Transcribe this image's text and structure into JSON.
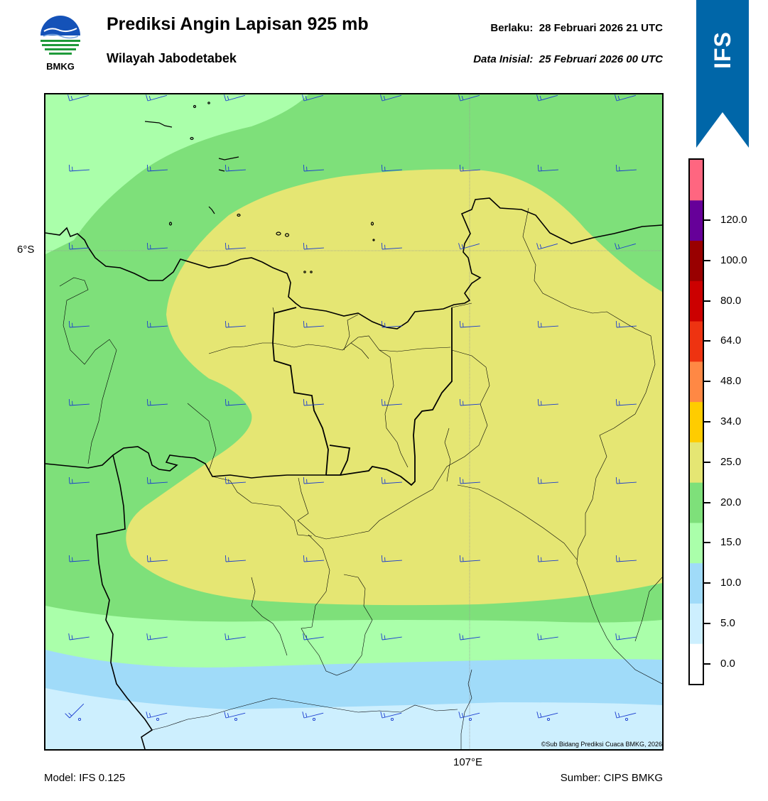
{
  "header": {
    "title": "Prediksi Angin Lapisan 925 mb",
    "region": "Wilayah Jabodetabek",
    "valid_label": "Berlaku:",
    "valid_time": "28 Februari 2026 21 UTC",
    "init_label": "Data Inisial:",
    "init_time": "25 Februari 2026 00 UTC"
  },
  "logo": {
    "name": "bmkg-logo",
    "text": "BMKG"
  },
  "ribbon": {
    "text": "IFS",
    "color": "#0066a8"
  },
  "map": {
    "lat_label": "6°S",
    "lon_label": "107°E",
    "copyright": "©Sub Bidang Prediksi Cuaca BMKG, 2026",
    "wind_barb_color": "#1a3ccf",
    "colors": {
      "lt5": "#cdeffe",
      "5to10": "#a0dbf9",
      "10to15": "#aaffaa",
      "15to20": "#7ee07a",
      "20to25": "#e5e673"
    }
  },
  "footer": {
    "model": "Model: IFS 0.125",
    "source": "Sumber: CIPS BMKG"
  },
  "colorbar": {
    "segments": [
      {
        "color": "#ffffff"
      },
      {
        "color": "#cdeffe"
      },
      {
        "color": "#a0dbf9"
      },
      {
        "color": "#aaffaa"
      },
      {
        "color": "#7ee07a"
      },
      {
        "color": "#e5e673"
      },
      {
        "color": "#ffcc00"
      },
      {
        "color": "#ff8844"
      },
      {
        "color": "#ee3311"
      },
      {
        "color": "#cc0000"
      },
      {
        "color": "#990000"
      },
      {
        "color": "#660099"
      },
      {
        "color": "#ff6680"
      }
    ],
    "labels": [
      "0.0",
      "5.0",
      "10.0",
      "15.0",
      "20.0",
      "25.0",
      "34.0",
      "48.0",
      "64.0",
      "80.0",
      "100.0",
      "120.0"
    ]
  }
}
